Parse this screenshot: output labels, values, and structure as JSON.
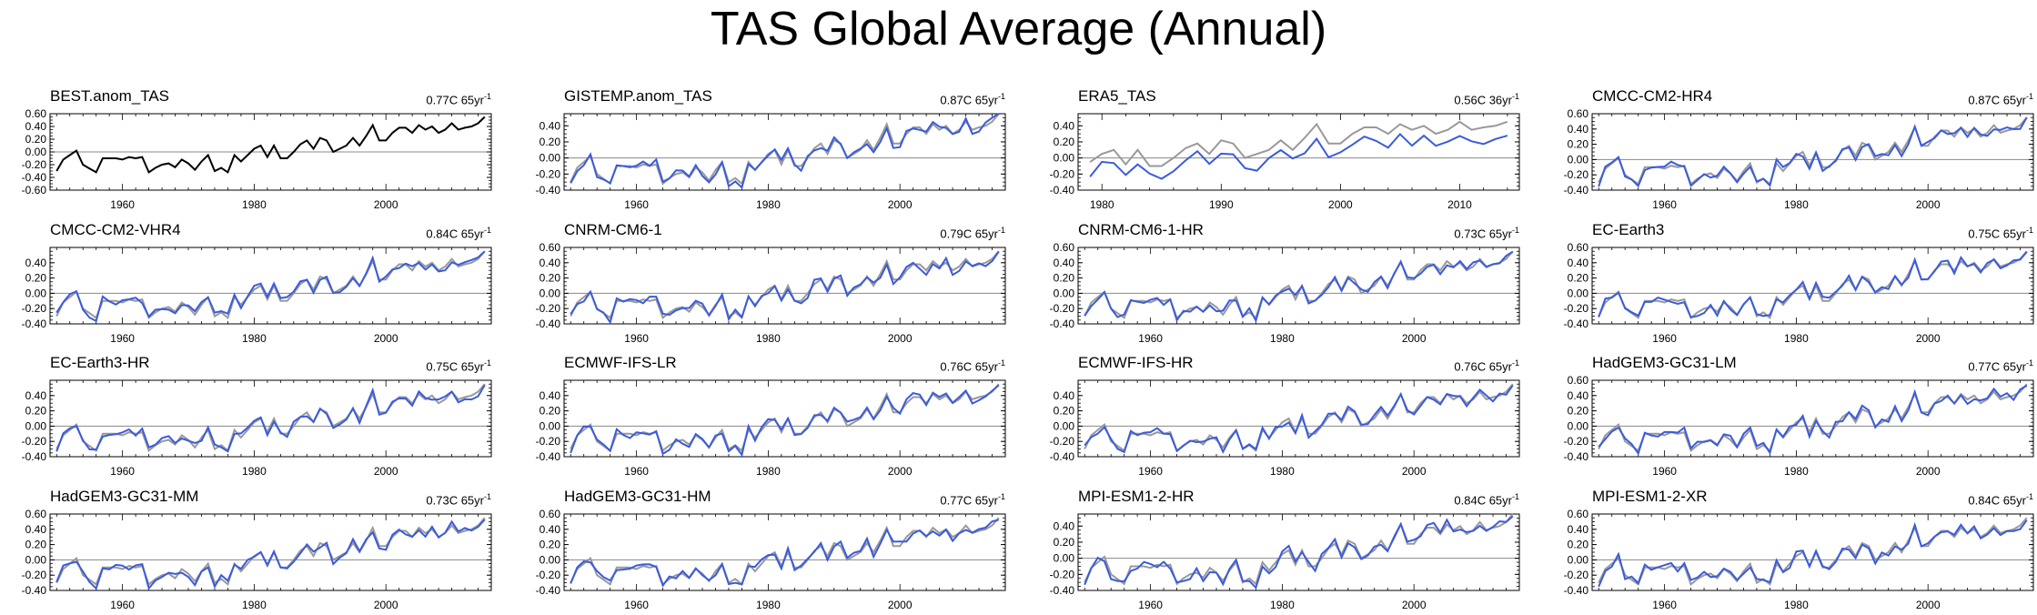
{
  "title": "TAS Global Average (Annual)",
  "colors": {
    "reference": "#000000",
    "observation": "#999999",
    "model": "#3b5bdb",
    "zero_line": "#888888"
  },
  "chart_data": [
    {
      "type": "line",
      "name": "BEST.anom_TAS",
      "trend": "0.77C 65yr",
      "trend_exp": "-1",
      "xlim": [
        1949,
        2016
      ],
      "ylim": [
        -0.6,
        0.6
      ],
      "yticks": [
        -0.6,
        -0.4,
        -0.2,
        0,
        0.2,
        0.4,
        0.6
      ],
      "xticks": [
        1960,
        1980,
        2000
      ],
      "show_obs": false,
      "main": "reference",
      "start": 1950,
      "obs_start": 1950,
      "seed": 1
    },
    {
      "type": "line",
      "name": "GISTEMP.anom_TAS",
      "trend": "0.87C 65yr",
      "trend_exp": "-1",
      "xlim": [
        1949,
        2016
      ],
      "ylim": [
        -0.4,
        0.55
      ],
      "yticks": [
        -0.4,
        -0.2,
        0,
        0.2,
        0.4
      ],
      "xticks": [
        1960,
        1980,
        2000
      ],
      "show_obs": true,
      "main": "model",
      "start": 1950,
      "obs_start": 1950,
      "seed": 2
    },
    {
      "type": "line",
      "name": "ERA5_TAS",
      "trend": "0.56C 36yr",
      "trend_exp": "-1",
      "xlim": [
        1978,
        2015
      ],
      "ylim": [
        -0.4,
        0.55
      ],
      "yticks": [
        -0.4,
        -0.2,
        0,
        0.2,
        0.4
      ],
      "xticks": [
        1980,
        1990,
        2000,
        2010
      ],
      "show_obs": true,
      "main": "model",
      "start": 1979,
      "obs_start": 1979,
      "seed": 3,
      "offset": -0.15
    },
    {
      "type": "line",
      "name": "CMCC-CM2-HR4",
      "trend": "0.87C 65yr",
      "trend_exp": "-1",
      "xlim": [
        1949,
        2016
      ],
      "ylim": [
        -0.4,
        0.6
      ],
      "yticks": [
        -0.4,
        -0.2,
        0,
        0.2,
        0.4,
        0.6
      ],
      "xticks": [
        1960,
        1980,
        2000
      ],
      "show_obs": true,
      "main": "model",
      "start": 1950,
      "obs_start": 1950,
      "seed": 4
    },
    {
      "type": "line",
      "name": "CMCC-CM2-VHR4",
      "trend": "0.84C 65yr",
      "trend_exp": "-1",
      "xlim": [
        1949,
        2016
      ],
      "ylim": [
        -0.4,
        0.6
      ],
      "yticks": [
        -0.4,
        -0.2,
        0,
        0.2,
        0.4
      ],
      "xticks": [
        1960,
        1980,
        2000
      ],
      "show_obs": true,
      "main": "model",
      "start": 1950,
      "obs_start": 1950,
      "seed": 5
    },
    {
      "type": "line",
      "name": "CNRM-CM6-1",
      "trend": "0.79C 65yr",
      "trend_exp": "-1",
      "xlim": [
        1949,
        2016
      ],
      "ylim": [
        -0.4,
        0.6
      ],
      "yticks": [
        -0.4,
        -0.2,
        0,
        0.2,
        0.4,
        0.6
      ],
      "xticks": [
        1960,
        1980,
        2000
      ],
      "show_obs": true,
      "main": "model",
      "start": 1950,
      "obs_start": 1950,
      "seed": 6
    },
    {
      "type": "line",
      "name": "CNRM-CM6-1-HR",
      "trend": "0.73C 65yr",
      "trend_exp": "-1",
      "xlim": [
        1949,
        2016
      ],
      "ylim": [
        -0.4,
        0.6
      ],
      "yticks": [
        -0.4,
        -0.2,
        0,
        0.2,
        0.4,
        0.6
      ],
      "xticks": [
        1960,
        1980,
        2000
      ],
      "show_obs": true,
      "main": "model",
      "start": 1950,
      "obs_start": 1950,
      "seed": 7
    },
    {
      "type": "line",
      "name": "EC-Earth3",
      "trend": "0.75C 65yr",
      "trend_exp": "-1",
      "xlim": [
        1949,
        2016
      ],
      "ylim": [
        -0.4,
        0.6
      ],
      "yticks": [
        -0.4,
        -0.2,
        0,
        0.2,
        0.4,
        0.6
      ],
      "xticks": [
        1960,
        1980,
        2000
      ],
      "show_obs": true,
      "main": "model",
      "start": 1950,
      "obs_start": 1950,
      "seed": 8
    },
    {
      "type": "line",
      "name": "EC-Earth3-HR",
      "trend": "0.75C 65yr",
      "trend_exp": "-1",
      "xlim": [
        1949,
        2016
      ],
      "ylim": [
        -0.4,
        0.6
      ],
      "yticks": [
        -0.4,
        -0.2,
        0,
        0.2,
        0.4
      ],
      "xticks": [
        1960,
        1980,
        2000
      ],
      "show_obs": true,
      "main": "model",
      "start": 1950,
      "obs_start": 1950,
      "seed": 9
    },
    {
      "type": "line",
      "name": "ECMWF-IFS-LR",
      "trend": "0.76C 65yr",
      "trend_exp": "-1",
      "xlim": [
        1949,
        2016
      ],
      "ylim": [
        -0.4,
        0.6
      ],
      "yticks": [
        -0.4,
        -0.2,
        0,
        0.2,
        0.4
      ],
      "xticks": [
        1960,
        1980,
        2000
      ],
      "show_obs": true,
      "main": "model",
      "start": 1950,
      "obs_start": 1950,
      "seed": 10
    },
    {
      "type": "line",
      "name": "ECMWF-IFS-HR",
      "trend": "0.76C 65yr",
      "trend_exp": "-1",
      "xlim": [
        1949,
        2016
      ],
      "ylim": [
        -0.4,
        0.6
      ],
      "yticks": [
        -0.4,
        -0.2,
        0,
        0.2,
        0.4
      ],
      "xticks": [
        1960,
        1980,
        2000
      ],
      "show_obs": true,
      "main": "model",
      "start": 1950,
      "obs_start": 1950,
      "seed": 11
    },
    {
      "type": "line",
      "name": "HadGEM3-GC31-LM",
      "trend": "0.77C 65yr",
      "trend_exp": "-1",
      "xlim": [
        1949,
        2016
      ],
      "ylim": [
        -0.4,
        0.6
      ],
      "yticks": [
        -0.4,
        -0.2,
        0,
        0.2,
        0.4,
        0.6
      ],
      "xticks": [
        1960,
        1980,
        2000
      ],
      "show_obs": true,
      "main": "model",
      "start": 1950,
      "obs_start": 1950,
      "seed": 12
    },
    {
      "type": "line",
      "name": "HadGEM3-GC31-MM",
      "trend": "0.73C 65yr",
      "trend_exp": "-1",
      "xlim": [
        1949,
        2016
      ],
      "ylim": [
        -0.4,
        0.6
      ],
      "yticks": [
        -0.4,
        -0.2,
        0,
        0.2,
        0.4,
        0.6
      ],
      "xticks": [
        1960,
        1980,
        2000
      ],
      "show_obs": true,
      "main": "model",
      "start": 1950,
      "obs_start": 1950,
      "seed": 13
    },
    {
      "type": "line",
      "name": "HadGEM3-GC31-HM",
      "trend": "0.77C 65yr",
      "trend_exp": "-1",
      "xlim": [
        1949,
        2016
      ],
      "ylim": [
        -0.4,
        0.6
      ],
      "yticks": [
        -0.4,
        -0.2,
        0,
        0.2,
        0.4,
        0.6
      ],
      "xticks": [
        1960,
        1980,
        2000
      ],
      "show_obs": true,
      "main": "model",
      "start": 1950,
      "obs_start": 1950,
      "seed": 14
    },
    {
      "type": "line",
      "name": "MPI-ESM1-2-HR",
      "trend": "0.84C 65yr",
      "trend_exp": "-1",
      "xlim": [
        1949,
        2016
      ],
      "ylim": [
        -0.4,
        0.55
      ],
      "yticks": [
        -0.4,
        -0.2,
        0,
        0.2,
        0.4
      ],
      "xticks": [
        1960,
        1980,
        2000
      ],
      "show_obs": true,
      "main": "model",
      "start": 1950,
      "obs_start": 1950,
      "seed": 15
    },
    {
      "type": "line",
      "name": "MPI-ESM1-2-XR",
      "trend": "0.84C 65yr",
      "trend_exp": "-1",
      "xlim": [
        1949,
        2016
      ],
      "ylim": [
        -0.4,
        0.6
      ],
      "yticks": [
        -0.4,
        -0.2,
        0,
        0.2,
        0.4,
        0.6
      ],
      "xticks": [
        1960,
        1980,
        2000
      ],
      "show_obs": true,
      "main": "model",
      "start": 1950,
      "obs_start": 1950,
      "seed": 16
    }
  ]
}
